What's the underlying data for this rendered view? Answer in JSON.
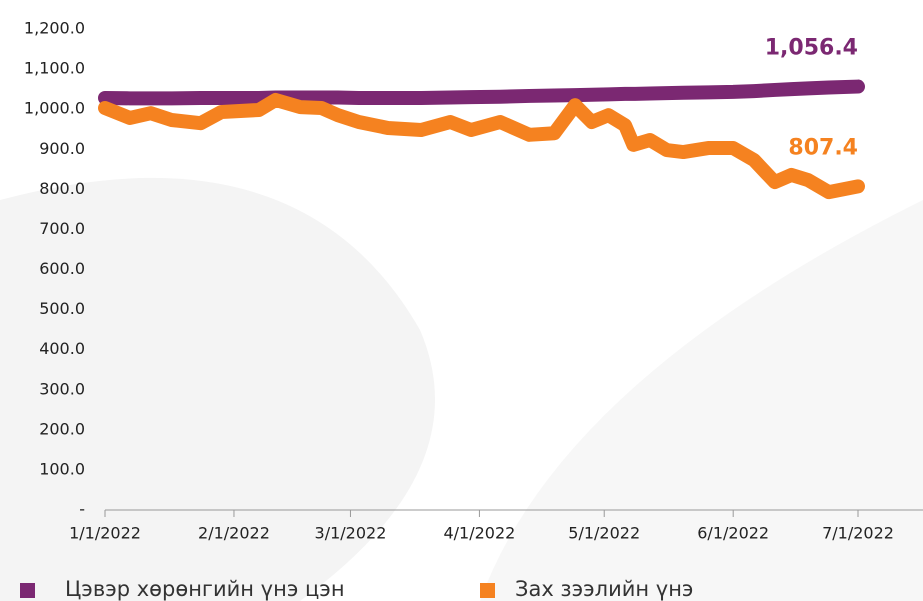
{
  "chart_data": {
    "type": "line",
    "x": [
      "2022-01-01",
      "2022-01-07",
      "2022-01-12",
      "2022-01-17",
      "2022-01-24",
      "2022-01-29",
      "2022-02-07",
      "2022-02-11",
      "2022-02-17",
      "2022-02-22",
      "2022-02-26",
      "2022-03-03",
      "2022-03-10",
      "2022-03-18",
      "2022-03-25",
      "2022-03-30",
      "2022-04-06",
      "2022-04-13",
      "2022-04-19",
      "2022-04-24",
      "2022-04-28",
      "2022-05-02",
      "2022-05-06",
      "2022-05-08",
      "2022-05-12",
      "2022-05-16",
      "2022-05-20",
      "2022-05-26",
      "2022-06-01",
      "2022-06-06",
      "2022-06-11",
      "2022-06-15",
      "2022-06-19",
      "2022-06-24",
      "2022-07-01"
    ],
    "series": [
      {
        "name": "Цэвэр хөрөнгийн үнэ цэн",
        "color": "#7b2872",
        "values": [
          1028,
          1027,
          1027,
          1027,
          1028,
          1028,
          1028,
          1029,
          1029,
          1029,
          1029,
          1028,
          1028,
          1028,
          1029,
          1030,
          1031,
          1033,
          1034,
          1035,
          1036,
          1037,
          1038,
          1038,
          1039,
          1040,
          1041,
          1042,
          1043,
          1045,
          1048,
          1050,
          1052,
          1054,
          1056.4
        ],
        "value_labels": [
          null,
          null,
          null,
          null,
          null,
          null,
          null,
          null,
          null,
          null,
          null,
          null,
          null,
          null,
          null,
          null,
          null,
          null,
          null,
          null,
          null,
          null,
          null,
          null,
          null,
          null,
          null,
          null,
          null,
          null,
          null,
          null,
          null,
          null,
          "1,056.4"
        ]
      },
      {
        "name": "Зах зээлийн үнэ",
        "color": "#f58220",
        "values": [
          1003,
          978,
          990,
          973,
          965,
          993,
          998,
          1023,
          1005,
          1003,
          985,
          968,
          953,
          948,
          968,
          948,
          968,
          936,
          940,
          1010,
          968,
          985,
          960,
          911,
          923,
          898,
          893,
          903,
          903,
          873,
          818,
          836,
          823,
          793,
          807.4
        ],
        "value_labels": [
          null,
          null,
          null,
          null,
          null,
          null,
          null,
          null,
          null,
          null,
          null,
          null,
          null,
          null,
          null,
          null,
          null,
          null,
          null,
          null,
          null,
          null,
          null,
          null,
          null,
          null,
          null,
          null,
          null,
          null,
          null,
          null,
          null,
          null,
          "807.4"
        ]
      }
    ],
    "xlim": [
      "2022-01-01",
      "2022-07-01"
    ],
    "xticks": [
      {
        "value": "2022-01-01",
        "label": "1/1/2022"
      },
      {
        "value": "2022-02-01",
        "label": "2/1/2022"
      },
      {
        "value": "2022-03-01",
        "label": "3/1/2022"
      },
      {
        "value": "2022-04-01",
        "label": "4/1/2022"
      },
      {
        "value": "2022-05-01",
        "label": "5/1/2022"
      },
      {
        "value": "2022-06-01",
        "label": "6/1/2022"
      },
      {
        "value": "2022-07-01",
        "label": "7/1/2022"
      }
    ],
    "ylim": [
      0,
      1200
    ],
    "yticks": [
      {
        "value": 0,
        "label": "-"
      },
      {
        "value": 100,
        "label": "100.0"
      },
      {
        "value": 200,
        "label": "200.0"
      },
      {
        "value": 300,
        "label": "300.0"
      },
      {
        "value": 400,
        "label": "400.0"
      },
      {
        "value": 500,
        "label": "500.0"
      },
      {
        "value": 600,
        "label": "600.0"
      },
      {
        "value": 700,
        "label": "700.0"
      },
      {
        "value": 800,
        "label": "800.0"
      },
      {
        "value": 900,
        "label": "900.0"
      },
      {
        "value": 1000,
        "label": "1,000.0"
      },
      {
        "value": 1100,
        "label": "1,100.0"
      },
      {
        "value": 1200,
        "label": "1,200.0"
      }
    ],
    "legend": "bottom"
  }
}
